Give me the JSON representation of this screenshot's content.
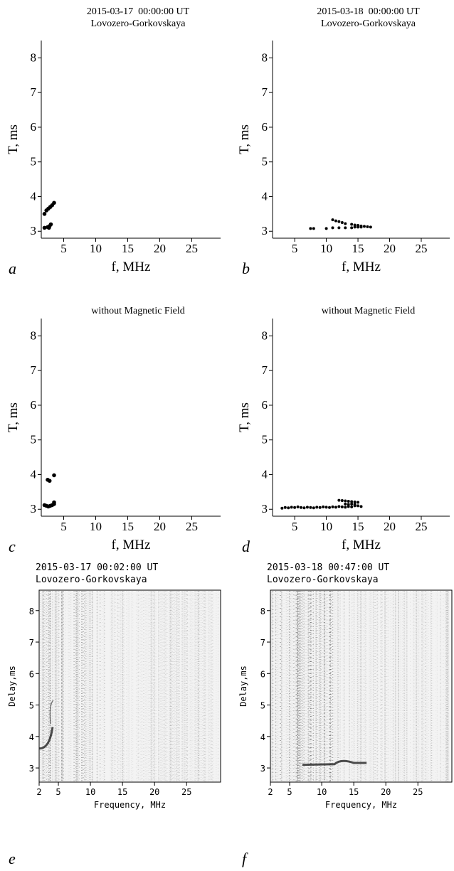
{
  "chart_data": [
    {
      "type": "scatter",
      "title": [
        "2015-03-17  00:00:00 UT",
        "Lovozero-Gorkovskaya"
      ],
      "panel_label": "a",
      "xlabel": "f, MHz",
      "ylabel": "T, ms",
      "color": "#000000",
      "x": [
        2.0,
        2.3,
        2.6,
        2.9,
        3.2,
        3.5,
        2.0,
        2.5,
        2.8,
        3.0,
        2.7
      ],
      "y": [
        3.5,
        3.6,
        3.65,
        3.7,
        3.75,
        3.82,
        3.1,
        3.12,
        3.15,
        3.2,
        3.1
      ],
      "xlim": [
        1.5,
        29.5
      ],
      "ylim": [
        2.8,
        8.5
      ],
      "xticks": [
        5,
        10,
        15,
        20,
        25
      ],
      "yticks": [
        3,
        4,
        5,
        6,
        7,
        8
      ]
    },
    {
      "type": "scatter",
      "title": [
        "2015-03-18  00:00:00 UT",
        "Lovozero-Gorkovskaya"
      ],
      "panel_label": "b",
      "xlabel": "f, MHz",
      "ylabel": "T, ms",
      "color": "#000000",
      "x": [
        7.5,
        8.0,
        10.0,
        11.0,
        11.0,
        11.5,
        12.0,
        12.5,
        13.0,
        12.0,
        13.0,
        14.0,
        14.5,
        15.0,
        15.5,
        16.0,
        16.5,
        17.0,
        14.0,
        14.5,
        15.0,
        15.5
      ],
      "y": [
        3.08,
        3.08,
        3.08,
        3.1,
        3.33,
        3.3,
        3.28,
        3.25,
        3.22,
        3.1,
        3.1,
        3.2,
        3.18,
        3.17,
        3.15,
        3.14,
        3.13,
        3.12,
        3.1,
        3.12,
        3.12,
        3.12
      ],
      "xlim": [
        1.5,
        29.5
      ],
      "ylim": [
        2.8,
        8.5
      ],
      "xticks": [
        5,
        10,
        15,
        20,
        25
      ],
      "yticks": [
        3,
        4,
        5,
        6,
        7,
        8
      ]
    },
    {
      "type": "scatter",
      "title": [
        "without Magnetic Field"
      ],
      "panel_label": "c",
      "xlabel": "f, MHz",
      "ylabel": "T, ms",
      "color": "#000000",
      "x": [
        2.0,
        2.3,
        2.6,
        2.9,
        3.2,
        3.5,
        3.5,
        2.5,
        2.8,
        3.5
      ],
      "y": [
        3.12,
        3.1,
        3.08,
        3.1,
        3.12,
        3.15,
        3.2,
        3.85,
        3.82,
        3.98
      ],
      "xlim": [
        1.5,
        29.5
      ],
      "ylim": [
        2.8,
        8.5
      ],
      "xticks": [
        5,
        10,
        15,
        20,
        25
      ],
      "yticks": [
        3,
        4,
        5,
        6,
        7,
        8
      ]
    },
    {
      "type": "scatter",
      "title": [
        "without Magnetic Field"
      ],
      "panel_label": "d",
      "xlabel": "f, MHz",
      "ylabel": "T, ms",
      "color": "#000000",
      "x": [
        3.0,
        3.5,
        4.0,
        4.5,
        5.0,
        5.5,
        6.0,
        6.5,
        7.0,
        7.5,
        8.0,
        8.5,
        9.0,
        9.5,
        10.0,
        10.5,
        11.0,
        11.5,
        12.0,
        12.5,
        13.0,
        13.5,
        14.0,
        14.5,
        15.0,
        15.5,
        12.0,
        12.5,
        13.0,
        13.5,
        14.0,
        14.5,
        15.0,
        13.0,
        13.5,
        14.0,
        14.5
      ],
      "y": [
        3.03,
        3.05,
        3.04,
        3.06,
        3.05,
        3.07,
        3.05,
        3.04,
        3.06,
        3.05,
        3.04,
        3.06,
        3.05,
        3.07,
        3.06,
        3.05,
        3.07,
        3.06,
        3.08,
        3.07,
        3.06,
        3.08,
        3.07,
        3.1,
        3.1,
        3.08,
        3.26,
        3.25,
        3.24,
        3.23,
        3.22,
        3.21,
        3.2,
        3.15,
        3.14,
        3.15,
        3.14
      ],
      "xlim": [
        1.5,
        29.5
      ],
      "ylim": [
        2.8,
        8.5
      ],
      "xticks": [
        5,
        10,
        15,
        20,
        25
      ],
      "yticks": [
        3,
        4,
        5,
        6,
        7,
        8
      ]
    },
    {
      "type": "ionogram",
      "title": [
        "2015-03-17 00:02:00 UT",
        "Lovozero-Gorkovskaya"
      ],
      "panel_label": "e",
      "xlabel": "Frequency, MHz",
      "ylabel": "Delay,ms",
      "xlim": [
        2,
        30.3
      ],
      "ylim": [
        2.55,
        8.65
      ],
      "xticks": [
        2,
        5,
        10,
        15,
        20,
        25
      ],
      "yticks": [
        3,
        4,
        5,
        6,
        7,
        8
      ]
    },
    {
      "type": "ionogram",
      "title": [
        "2015-03-18 00:47:00 UT",
        "Lovozero-Gorkovskaya"
      ],
      "panel_label": "f",
      "xlabel": "Frequency, MHz",
      "ylabel": "Delay,ms",
      "xlim": [
        2,
        30.3
      ],
      "ylim": [
        2.55,
        8.65
      ],
      "xticks": [
        2,
        5,
        10,
        15,
        20,
        25
      ],
      "yticks": [
        3,
        4,
        5,
        6,
        7,
        8
      ]
    }
  ]
}
